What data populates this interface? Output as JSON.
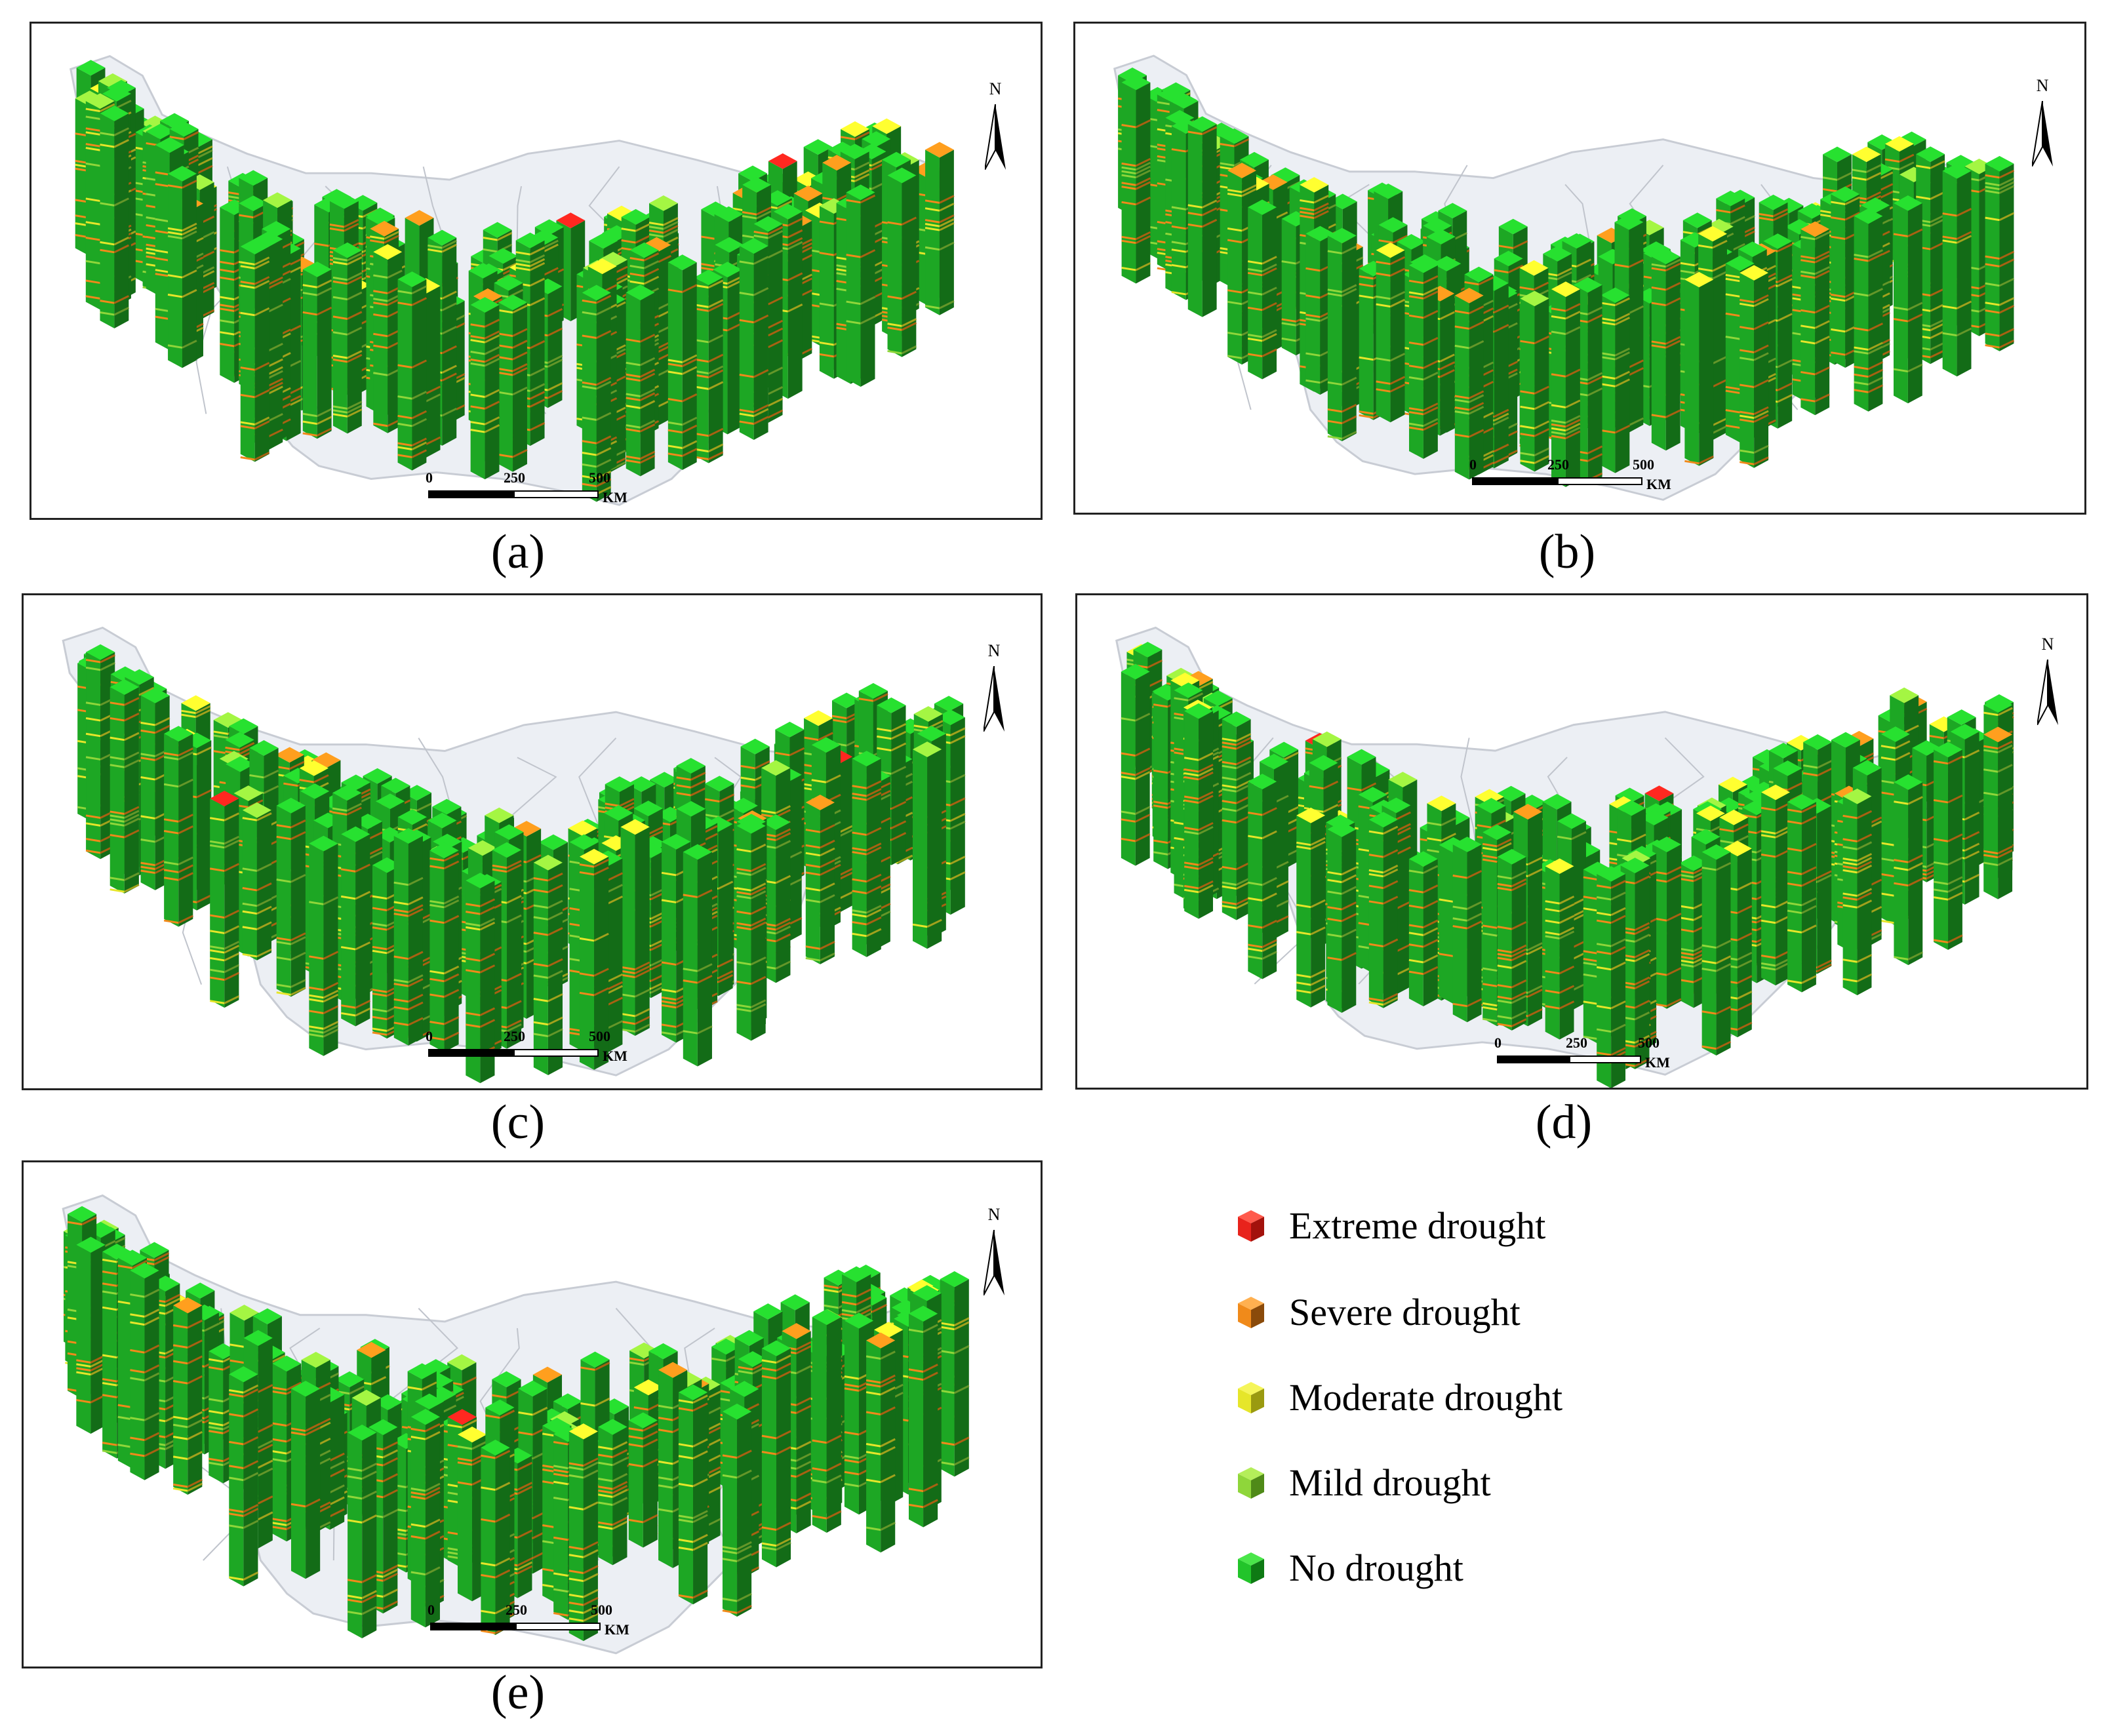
{
  "figure": {
    "panels": [
      {
        "id": "a",
        "caption": "(a)"
      },
      {
        "id": "b",
        "caption": "(b)"
      },
      {
        "id": "c",
        "caption": "(c)"
      },
      {
        "id": "d",
        "caption": "(d)"
      },
      {
        "id": "e",
        "caption": "(e)"
      }
    ],
    "north_label": "N",
    "scale": {
      "tick_0": "0",
      "tick_1": "250",
      "tick_2": "500",
      "unit": "KM"
    },
    "legend": [
      {
        "label": "Extreme drought",
        "color": "#e8231c"
      },
      {
        "label": "Severe drought",
        "color": "#f08a1a"
      },
      {
        "label": "Moderate drought",
        "color": "#e6e62a"
      },
      {
        "label": "Mild drought",
        "color": "#8fd63a"
      },
      {
        "label": "No drought",
        "color": "#22c42a"
      }
    ]
  }
}
